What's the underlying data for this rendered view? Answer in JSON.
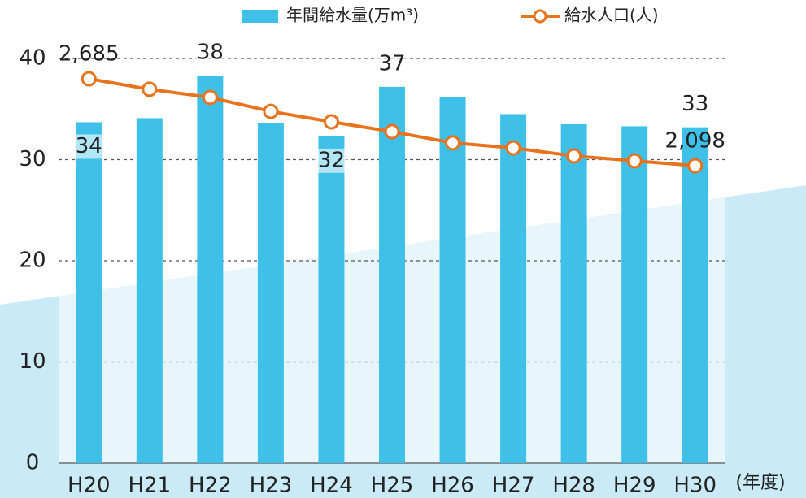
{
  "chart_data": {
    "type": "bar-line",
    "categories": [
      "H20",
      "H21",
      "H22",
      "H23",
      "H24",
      "H25",
      "H26",
      "H27",
      "H28",
      "H29",
      "H30"
    ],
    "x_label": "(年度)",
    "series": [
      {
        "name": "年間給水量(万m³)",
        "type": "bar",
        "color": "#3ec0e8",
        "values": [
          33.7,
          34.1,
          38.3,
          33.6,
          32.3,
          37.2,
          36.2,
          34.5,
          33.5,
          33.3,
          33.2
        ],
        "value_labels": [
          "34",
          null,
          "38",
          null,
          "32",
          "37",
          null,
          null,
          null,
          null,
          "33"
        ]
      },
      {
        "name": "給水人口(人)",
        "type": "line",
        "axis": "y2",
        "color": "#e8731e",
        "values": [
          2685,
          2614,
          2559,
          2465,
          2394,
          2328,
          2252,
          2218,
          2164,
          2131,
          2098
        ],
        "value_labels": [
          "2,685",
          null,
          null,
          null,
          null,
          null,
          null,
          null,
          null,
          null,
          "2,098"
        ]
      }
    ],
    "ylim": [
      0,
      40
    ],
    "yticks": [
      0,
      10,
      20,
      30,
      40
    ],
    "y2lim": [
      90,
      2822
    ],
    "grid": true
  }
}
